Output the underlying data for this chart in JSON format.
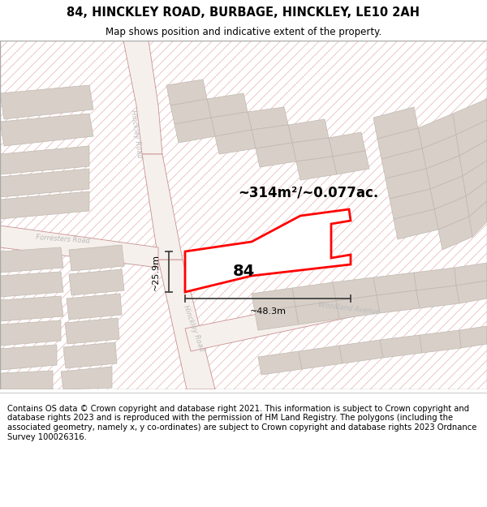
{
  "title": "84, HINCKLEY ROAD, BURBAGE, HINCKLEY, LE10 2AH",
  "subtitle": "Map shows position and indicative extent of the property.",
  "footer": "Contains OS data © Crown copyright and database right 2021. This information is subject to Crown copyright and database rights 2023 and is reproduced with the permission of HM Land Registry. The polygons (including the associated geometry, namely x, y co-ordinates) are subject to Crown copyright and database rights 2023 Ordnance Survey 100026316.",
  "area_text": "~314m²/~0.077ac.",
  "width_text": "~48.3m",
  "height_text": "~25.9m",
  "property_number": "84",
  "map_bg": "#f7f3ef",
  "hatch_color": "#e8b8b8",
  "road_fill": "#f5f0ec",
  "road_edge": "#c89090",
  "building_fill": "#d8d0c8",
  "building_edge": "#c0b8b0",
  "plot_edge": "#ff0000",
  "road_label_color": "#bbbbbb",
  "dim_line_color": "#444444",
  "title_fontsize": 10.5,
  "subtitle_fontsize": 8.5,
  "footer_fontsize": 7.2
}
